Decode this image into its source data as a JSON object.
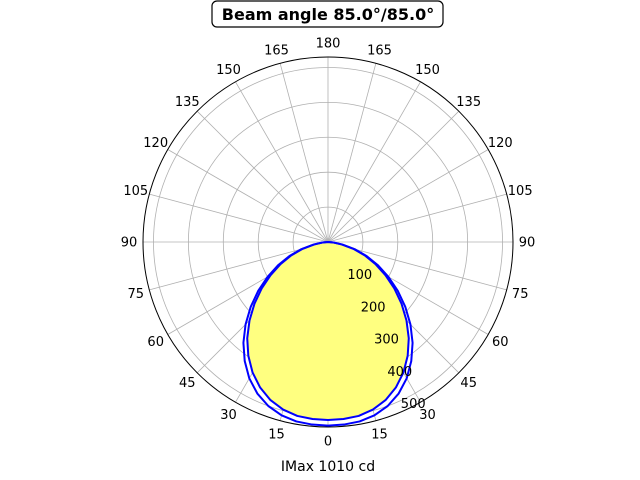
{
  "chart_data": {
    "type": "polar",
    "title": "Beam angle 85.0°/85.0°",
    "xlabel": "IMax 1010 cd",
    "angle_tick_labels": [
      {
        "angle": 180,
        "label": "180"
      },
      {
        "angle": 165,
        "label": "165"
      },
      {
        "angle": -165,
        "label": "165"
      },
      {
        "angle": 150,
        "label": "150"
      },
      {
        "angle": -150,
        "label": "150"
      },
      {
        "angle": 135,
        "label": "135"
      },
      {
        "angle": -135,
        "label": "135"
      },
      {
        "angle": 120,
        "label": "120"
      },
      {
        "angle": -120,
        "label": "120"
      },
      {
        "angle": 105,
        "label": "105"
      },
      {
        "angle": -105,
        "label": "105"
      },
      {
        "angle": 90,
        "label": "90"
      },
      {
        "angle": -90,
        "label": "90"
      },
      {
        "angle": 75,
        "label": "75"
      },
      {
        "angle": -75,
        "label": "75"
      },
      {
        "angle": 60,
        "label": "60"
      },
      {
        "angle": -60,
        "label": "60"
      },
      {
        "angle": 45,
        "label": "45"
      },
      {
        "angle": -45,
        "label": "45"
      },
      {
        "angle": 30,
        "label": "30"
      },
      {
        "angle": -30,
        "label": "30"
      },
      {
        "angle": 15,
        "label": "15"
      },
      {
        "angle": -15,
        "label": "15"
      },
      {
        "angle": 0,
        "label": "0"
      }
    ],
    "radial_ticks": [
      100,
      200,
      300,
      400,
      500
    ],
    "radial_tick_labels": [
      "100",
      "200",
      "300",
      "400",
      "500"
    ],
    "rlim": [
      0,
      530
    ],
    "grid": true,
    "series": [
      {
        "color": "#0000ff",
        "fill": "#ffff80",
        "angles": [
          -90,
          -85,
          -80,
          -75,
          -70,
          -65,
          -60,
          -55,
          -50,
          -45,
          -40,
          -35,
          -30,
          -25,
          -20,
          -15,
          -10,
          -5,
          0,
          5,
          10,
          15,
          20,
          25,
          30,
          35,
          40,
          45,
          50,
          55,
          60,
          65,
          70,
          75,
          80,
          85,
          90
        ],
        "values": [
          0,
          15,
          40,
          75,
          112,
          150,
          190,
          232,
          275,
          318,
          360,
          398,
          432,
          460,
          482,
          497,
          506,
          509,
          510,
          509,
          506,
          497,
          482,
          460,
          432,
          398,
          360,
          318,
          275,
          232,
          190,
          150,
          112,
          75,
          40,
          15,
          0
        ]
      },
      {
        "color": "#0000ff",
        "angles": [
          -90,
          -85,
          -80,
          -75,
          -70,
          -65,
          -60,
          -55,
          -50,
          -45,
          -40,
          -35,
          -30,
          -25,
          -20,
          -15,
          -10,
          -5,
          0,
          5,
          10,
          15,
          20,
          25,
          30,
          35,
          40,
          45,
          50,
          55,
          60,
          65,
          70,
          75,
          80,
          85,
          90
        ],
        "values": [
          0,
          16,
          42,
          79,
          118,
          158,
          200,
          244,
          289,
          334,
          377,
          416,
          451,
          479,
          500,
          514,
          522,
          525,
          526,
          525,
          522,
          514,
          500,
          479,
          451,
          416,
          377,
          334,
          289,
          244,
          200,
          158,
          118,
          79,
          42,
          16,
          0
        ]
      }
    ]
  }
}
